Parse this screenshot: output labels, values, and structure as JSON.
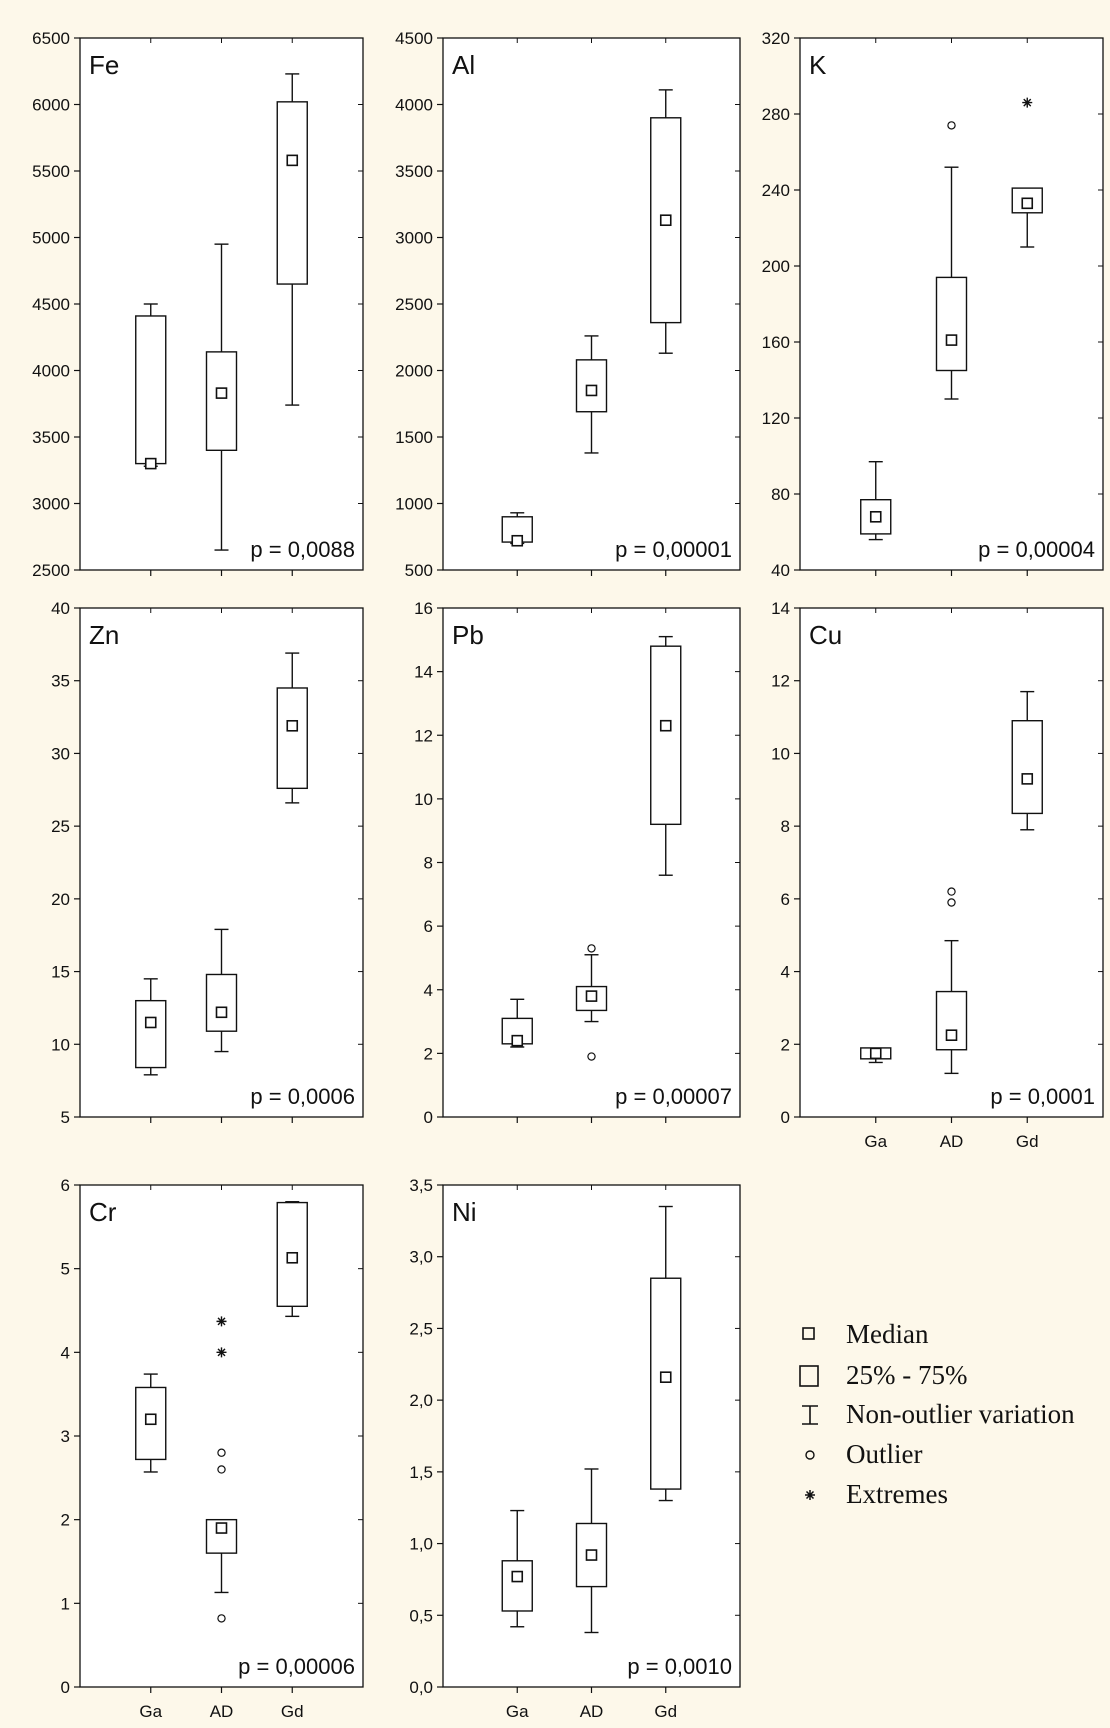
{
  "chart_data": [
    {
      "type": "box",
      "title": "Fe",
      "ylim": [
        2500,
        6500
      ],
      "yticks": [
        "2500",
        "3000",
        "3500",
        "4000",
        "4500",
        "5000",
        "5500",
        "6000",
        "6500"
      ],
      "categories": [
        "Ga",
        "AD",
        "Gd"
      ],
      "show_xticklabels": false,
      "p_label": "p = 0,0088",
      "boxes": [
        {
          "category": "Ga",
          "min": 3280,
          "q1": 3300,
          "median": 3300,
          "q3": 4410,
          "max": 4500,
          "outliers": [],
          "extremes": []
        },
        {
          "category": "AD",
          "min": 2650,
          "q1": 3400,
          "median": 3830,
          "q3": 4140,
          "max": 4950,
          "outliers": [],
          "extremes": []
        },
        {
          "category": "Gd",
          "min": 3740,
          "q1": 4650,
          "median": 5580,
          "q3": 6020,
          "max": 6230,
          "outliers": [],
          "extremes": []
        }
      ]
    },
    {
      "type": "box",
      "title": "Al",
      "ylim": [
        500,
        4500
      ],
      "yticks": [
        "500",
        "1000",
        "1500",
        "2000",
        "2500",
        "3000",
        "3500",
        "4000",
        "4500"
      ],
      "categories": [
        "Ga",
        "AD",
        "Gd"
      ],
      "show_xticklabels": false,
      "p_label": "p = 0,00001",
      "boxes": [
        {
          "category": "Ga",
          "min": 700,
          "q1": 710,
          "median": 720,
          "q3": 900,
          "max": 930,
          "outliers": [],
          "extremes": []
        },
        {
          "category": "AD",
          "min": 1380,
          "q1": 1690,
          "median": 1850,
          "q3": 2080,
          "max": 2260,
          "outliers": [],
          "extremes": []
        },
        {
          "category": "Gd",
          "min": 2130,
          "q1": 2360,
          "median": 3130,
          "q3": 3900,
          "max": 4110,
          "outliers": [],
          "extremes": []
        }
      ]
    },
    {
      "type": "box",
      "title": "K",
      "ylim": [
        40,
        320
      ],
      "yticks": [
        "40",
        "80",
        "120",
        "160",
        "200",
        "240",
        "280",
        "320"
      ],
      "categories": [
        "Ga",
        "AD",
        "Gd"
      ],
      "show_xticklabels": false,
      "p_label": "p = 0,00004",
      "boxes": [
        {
          "category": "Ga",
          "min": 56,
          "q1": 59,
          "median": 68,
          "q3": 77,
          "max": 97,
          "outliers": [],
          "extremes": []
        },
        {
          "category": "AD",
          "min": 130,
          "q1": 145,
          "median": 161,
          "q3": 194,
          "max": 252,
          "outliers": [
            274
          ],
          "extremes": []
        },
        {
          "category": "Gd",
          "min": 210,
          "q1": 228,
          "median": 233,
          "q3": 241,
          "max": 241,
          "outliers": [],
          "extremes": [
            286
          ]
        }
      ]
    },
    {
      "type": "box",
      "title": "Zn",
      "ylim": [
        5,
        40
      ],
      "yticks": [
        "5",
        "10",
        "15",
        "20",
        "25",
        "30",
        "35",
        "40"
      ],
      "categories": [
        "Ga",
        "AD",
        "Gd"
      ],
      "show_xticklabels": false,
      "p_label": "p = 0,0006",
      "boxes": [
        {
          "category": "Ga",
          "min": 7.9,
          "q1": 8.4,
          "median": 11.5,
          "q3": 13.0,
          "max": 14.5,
          "outliers": [],
          "extremes": []
        },
        {
          "category": "AD",
          "min": 9.5,
          "q1": 10.9,
          "median": 12.2,
          "q3": 14.8,
          "max": 17.9,
          "outliers": [],
          "extremes": []
        },
        {
          "category": "Gd",
          "min": 26.6,
          "q1": 27.6,
          "median": 31.9,
          "q3": 34.5,
          "max": 36.9,
          "outliers": [],
          "extremes": []
        }
      ]
    },
    {
      "type": "box",
      "title": "Pb",
      "ylim": [
        0,
        16
      ],
      "yticks": [
        "0",
        "2",
        "4",
        "6",
        "8",
        "10",
        "12",
        "14",
        "16"
      ],
      "categories": [
        "Ga",
        "AD",
        "Gd"
      ],
      "show_xticklabels": false,
      "p_label": "p = 0,00007",
      "boxes": [
        {
          "category": "Ga",
          "min": 2.2,
          "q1": 2.3,
          "median": 2.4,
          "q3": 3.1,
          "max": 3.7,
          "outliers": [],
          "extremes": []
        },
        {
          "category": "AD",
          "min": 3.0,
          "q1": 3.35,
          "median": 3.8,
          "q3": 4.1,
          "max": 5.1,
          "outliers": [
            1.9,
            5.3
          ],
          "extremes": []
        },
        {
          "category": "Gd",
          "min": 7.6,
          "q1": 9.2,
          "median": 12.3,
          "q3": 14.8,
          "max": 15.1,
          "outliers": [],
          "extremes": []
        }
      ]
    },
    {
      "type": "box",
      "title": "Cu",
      "ylim": [
        0,
        14
      ],
      "yticks": [
        "0",
        "2",
        "4",
        "6",
        "8",
        "10",
        "12",
        "14"
      ],
      "categories": [
        "Ga",
        "AD",
        "Gd"
      ],
      "show_xticklabels": true,
      "p_label": "p = 0,0001",
      "boxes": [
        {
          "category": "Ga",
          "min": 1.5,
          "q1": 1.6,
          "median": 1.75,
          "q3": 1.9,
          "max": 1.9,
          "outliers": [],
          "extremes": []
        },
        {
          "category": "AD",
          "min": 1.2,
          "q1": 1.85,
          "median": 2.25,
          "q3": 3.45,
          "max": 4.85,
          "outliers": [
            5.9,
            6.2
          ],
          "extremes": []
        },
        {
          "category": "Gd",
          "min": 7.9,
          "q1": 8.35,
          "median": 9.3,
          "q3": 10.9,
          "max": 11.7,
          "outliers": [],
          "extremes": []
        }
      ]
    },
    {
      "type": "box",
      "title": "Cr",
      "ylim": [
        0,
        6
      ],
      "yticks": [
        "0",
        "1",
        "2",
        "3",
        "4",
        "5",
        "6"
      ],
      "categories": [
        "Ga",
        "AD",
        "Gd"
      ],
      "show_xticklabels": true,
      "p_label": "p = 0,00006",
      "boxes": [
        {
          "category": "Ga",
          "min": 2.57,
          "q1": 2.72,
          "median": 3.2,
          "q3": 3.58,
          "max": 3.74,
          "outliers": [],
          "extremes": []
        },
        {
          "category": "AD",
          "min": 1.13,
          "q1": 1.6,
          "median": 1.9,
          "q3": 2.0,
          "max": 2.0,
          "outliers": [
            0.82,
            2.6,
            2.8
          ],
          "extremes": [
            4.0,
            4.37
          ]
        },
        {
          "category": "Gd",
          "min": 4.43,
          "q1": 4.55,
          "median": 5.13,
          "q3": 5.79,
          "max": 5.8,
          "outliers": [],
          "extremes": []
        }
      ]
    },
    {
      "type": "box",
      "title": "Ni",
      "ylim": [
        0,
        3.5
      ],
      "yticks": [
        "0,0",
        "0,5",
        "1,0",
        "1,5",
        "2,0",
        "2,5",
        "3,0",
        "3,5"
      ],
      "categories": [
        "Ga",
        "AD",
        "Gd"
      ],
      "show_xticklabels": true,
      "p_label": "p = 0,0010",
      "boxes": [
        {
          "category": "Ga",
          "min": 0.42,
          "q1": 0.53,
          "median": 0.77,
          "q3": 0.88,
          "max": 1.23,
          "outliers": [],
          "extremes": []
        },
        {
          "category": "AD",
          "min": 0.38,
          "q1": 0.7,
          "median": 0.92,
          "q3": 1.14,
          "max": 1.52,
          "outliers": [],
          "extremes": []
        },
        {
          "category": "Gd",
          "min": 1.3,
          "q1": 1.38,
          "median": 2.16,
          "q3": 2.85,
          "max": 3.35,
          "outliers": [],
          "extremes": []
        }
      ]
    }
  ],
  "legend": {
    "items": [
      {
        "symbol": "median",
        "label": "Median"
      },
      {
        "symbol": "box",
        "label": "25% - 75%"
      },
      {
        "symbol": "whisker",
        "label": "Non-outlier variation"
      },
      {
        "symbol": "outlier",
        "label": "Outlier"
      },
      {
        "symbol": "extreme",
        "label": "Extremes"
      }
    ]
  }
}
